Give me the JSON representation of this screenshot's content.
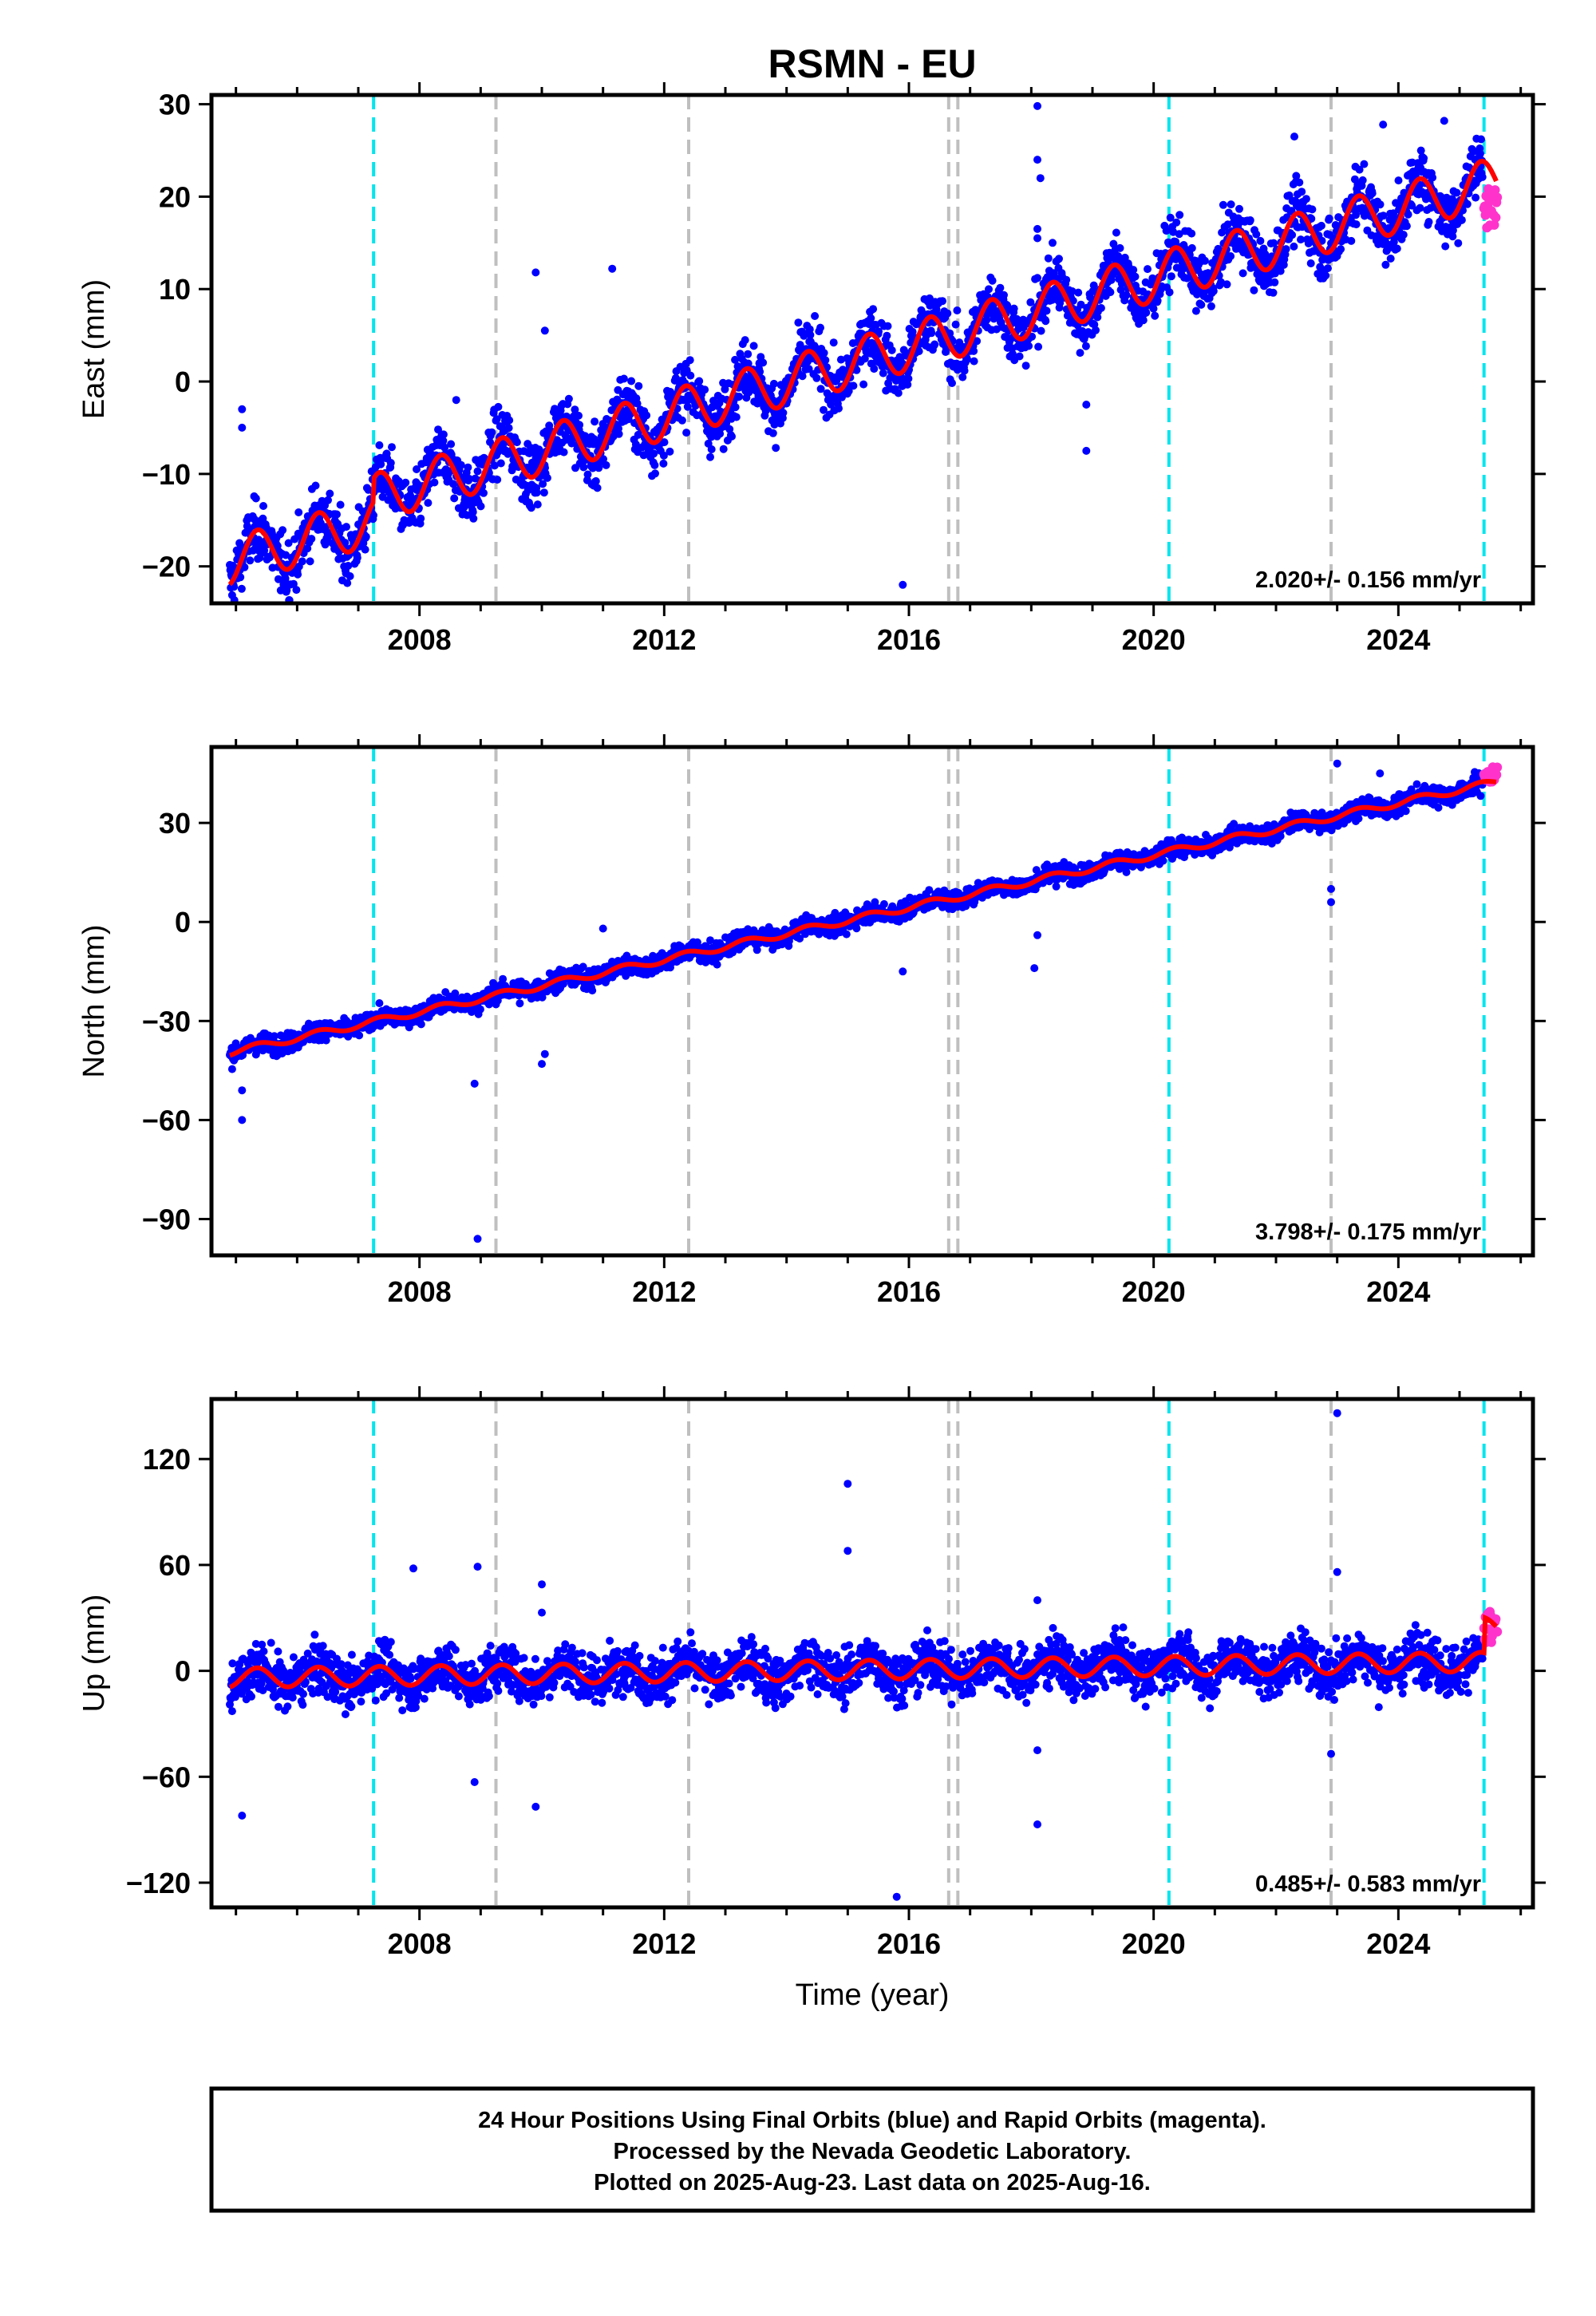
{
  "chart_data": {
    "type": "scatter",
    "title": "RSMN - EU",
    "xlabel": "Time (year)",
    "xlim": [
      2004.6,
      2026.2
    ],
    "x_ticks": [
      2008,
      2012,
      2016,
      2020,
      2024
    ],
    "x_tick_labels": [
      "2008",
      "2012",
      "2016",
      "2020",
      "2024"
    ],
    "vlines_cyan": [
      2007.25,
      2020.25,
      2025.4
    ],
    "vlines_gray": [
      2009.25,
      2012.4,
      2016.65,
      2016.8,
      2022.9
    ],
    "legend": [
      {
        "name": "Final Orbits",
        "color": "#0000ff"
      },
      {
        "name": "Rapid Orbits",
        "color": "#ff33cc"
      },
      {
        "name": "Model",
        "color": "#ff0000"
      }
    ],
    "series_colors": {
      "final": "#0000ff",
      "rapid": "#ff33cc",
      "model": "#ff0000",
      "vline_cyan": "#00e5ee",
      "vline_gray": "#bfbfbf"
    },
    "panels": [
      {
        "ylabel": "East (mm)",
        "ylim": [
          -24,
          31
        ],
        "yticks": [
          30,
          20,
          10,
          0,
          -10,
          -20
        ],
        "ytick_labels": [
          "30",
          "20",
          "10",
          "0",
          "−10",
          "−20"
        ],
        "rate_text": "2.020+/- 0.156 mm/yr",
        "trend": [
          [
            2004.9,
            -19.5
          ],
          [
            2025.5,
            19.0
          ]
        ],
        "seasonal_amplitude": 2.6,
        "offsets": [
          {
            "x": 2007.25,
            "dy": 2.5
          }
        ],
        "scatter": 1.6,
        "outliers": [
          [
            2005.1,
            -3
          ],
          [
            2005.1,
            -5
          ],
          [
            2008.6,
            -2
          ],
          [
            2010.05,
            5.5
          ],
          [
            2011.15,
            12.2
          ],
          [
            2009.9,
            11.8
          ],
          [
            2015.9,
            -22
          ],
          [
            2018.1,
            29.8
          ],
          [
            2018.1,
            24
          ],
          [
            2018.15,
            22
          ],
          [
            2018.1,
            16.5
          ],
          [
            2018.1,
            15.5
          ],
          [
            2018.9,
            -7.5
          ],
          [
            2018.9,
            -2.5
          ],
          [
            2022.3,
            26.5
          ],
          [
            2023.75,
            27.8
          ],
          [
            2024.75,
            28.2
          ]
        ],
        "rapid_range": [
          16.5,
          21.0
        ]
      },
      {
        "ylabel": "North (mm)",
        "ylim": [
          -101,
          53
        ],
        "yticks": [
          30,
          0,
          -30,
          -60,
          -90
        ],
        "ytick_labels": [
          "30",
          "0",
          "−30",
          "−60",
          "−90"
        ],
        "rate_text": "3.798+/- 0.175 mm/yr",
        "trend": [
          [
            2004.9,
            -39.5
          ],
          [
            2025.5,
            42.0
          ]
        ],
        "seasonal_amplitude": 1.0,
        "offsets": [],
        "scatter": 1.4,
        "outliers": [
          [
            2005.1,
            -51
          ],
          [
            2005.1,
            -60
          ],
          [
            2008.9,
            -49
          ],
          [
            2008.95,
            -96
          ],
          [
            2010.0,
            -43
          ],
          [
            2010.05,
            -40
          ],
          [
            2011.0,
            -2
          ],
          [
            2015.9,
            -15
          ],
          [
            2018.05,
            -14
          ],
          [
            2018.1,
            -4
          ],
          [
            2022.9,
            10
          ],
          [
            2022.9,
            6
          ],
          [
            2023.0,
            48
          ],
          [
            2023.7,
            45
          ]
        ],
        "rapid_range": [
          42.0,
          47.0
        ]
      },
      {
        "ylabel": "Up (mm)",
        "ylim": [
          -134,
          154
        ],
        "yticks": [
          120,
          60,
          0,
          -60,
          -120
        ],
        "ytick_labels": [
          "120",
          "60",
          "0",
          "−60",
          "−120"
        ],
        "rate_text": "0.485+/- 0.583 mm/yr",
        "trend": [
          [
            2004.9,
            -4.0
          ],
          [
            2025.3,
            5.0
          ]
        ],
        "seasonal_amplitude": 5.5,
        "offsets": [
          {
            "x": 2025.4,
            "dy": 20
          }
        ],
        "scatter": 7.0,
        "outliers": [
          [
            2005.1,
            -82
          ],
          [
            2007.9,
            58
          ],
          [
            2008.9,
            -63
          ],
          [
            2008.95,
            59
          ],
          [
            2009.9,
            -77
          ],
          [
            2010.0,
            49
          ],
          [
            2010.0,
            33
          ],
          [
            2015.0,
            106
          ],
          [
            2015.0,
            68
          ],
          [
            2015.8,
            -128
          ],
          [
            2018.1,
            40
          ],
          [
            2018.1,
            -45
          ],
          [
            2018.1,
            -87
          ],
          [
            2023.0,
            146
          ],
          [
            2023.0,
            56
          ],
          [
            2022.9,
            -47
          ]
        ],
        "rapid_range": [
          15.0,
          35.0
        ]
      }
    ]
  },
  "caption": {
    "line1": "24 Hour Positions Using Final Orbits (blue) and Rapid Orbits (magenta).",
    "line2": "Processed by the Nevada Geodetic Laboratory.",
    "line3": "Plotted on 2025-Aug-23. Last data on 2025-Aug-16."
  }
}
